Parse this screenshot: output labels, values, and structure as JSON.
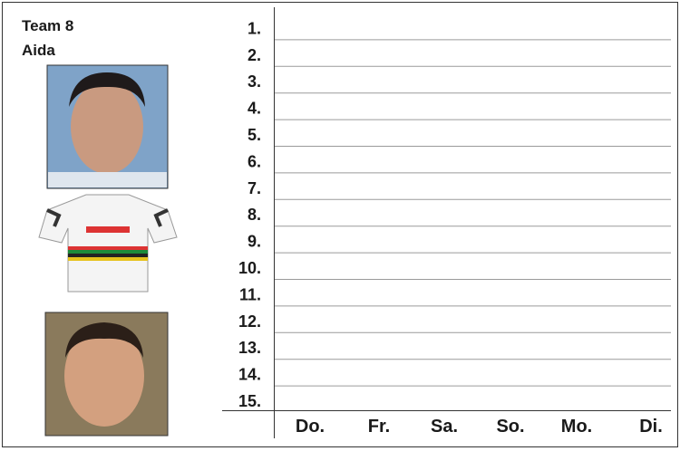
{
  "header": {
    "team": "Team 8",
    "name": "Aida"
  },
  "rows": [
    "1.",
    "2.",
    "3.",
    "4.",
    "5.",
    "6.",
    "7.",
    "8.",
    "9.",
    "10.",
    "11.",
    "12.",
    "13.",
    "14.",
    "15."
  ],
  "days": [
    "Do.",
    "Fr.",
    "Sa.",
    "So.",
    "Mo.",
    "Di."
  ]
}
